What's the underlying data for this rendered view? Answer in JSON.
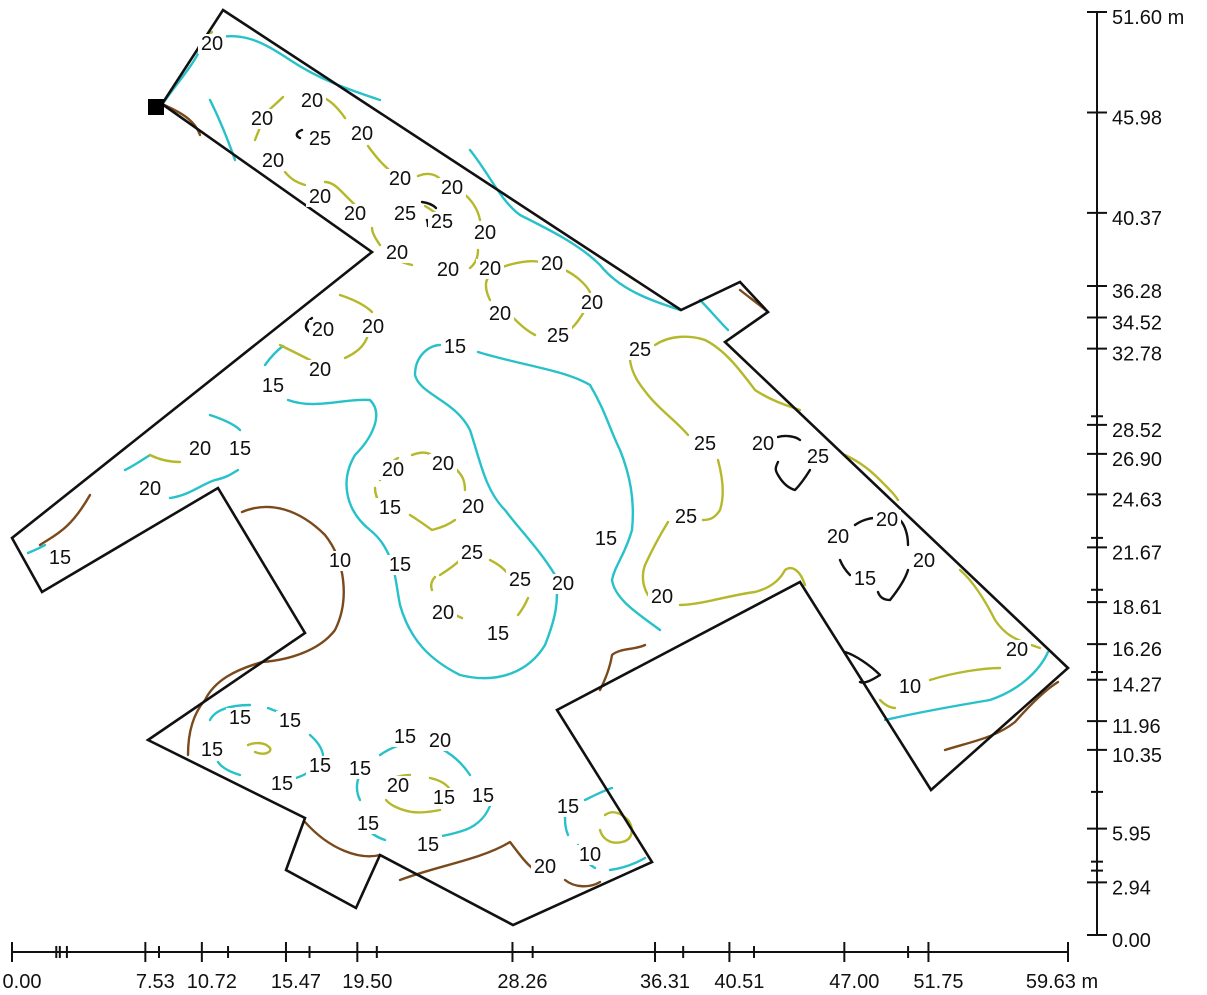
{
  "colors": {
    "contour_10": "#7a4a1c",
    "contour_15": "#27c1c9",
    "contour_20": "#b5b82a",
    "contour_25": "#111111",
    "outline": "#111111"
  },
  "x_axis": {
    "labels": [
      "0.00",
      "7.53",
      "10.72",
      "15.47",
      "19.50",
      "28.26",
      "36.31",
      "40.51",
      "47.00",
      "51.75",
      "59.63 m"
    ]
  },
  "y_axis": {
    "labels": [
      "51.60 m",
      "45.98",
      "40.37",
      "36.28",
      "34.52",
      "32.78",
      "28.52",
      "26.90",
      "24.63",
      "21.67",
      "18.61",
      "16.26",
      "14.27",
      "11.96",
      "10.35",
      "5.95",
      "2.94",
      "0.00"
    ]
  },
  "contour_labels": [
    "20",
    "20",
    "20",
    "25",
    "20",
    "20",
    "20",
    "20",
    "20",
    "25",
    "25",
    "20",
    "20",
    "20",
    "20",
    "20",
    "20",
    "20",
    "20",
    "25",
    "20",
    "20",
    "15",
    "20",
    "15",
    "15",
    "20",
    "20",
    "20",
    "20",
    "15",
    "20",
    "25",
    "25",
    "20",
    "25",
    "25",
    "25",
    "25",
    "15",
    "10",
    "15",
    "20",
    "20",
    "15",
    "20",
    "20",
    "20",
    "20",
    "15",
    "15",
    "15",
    "15",
    "15",
    "15",
    "15",
    "15",
    "15",
    "20",
    "20",
    "15",
    "15",
    "15",
    "15",
    "15",
    "10",
    "20",
    "20",
    "10"
  ]
}
